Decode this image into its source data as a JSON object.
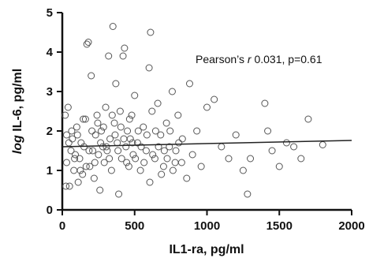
{
  "chart_data": {
    "type": "scatter",
    "xlabel": "IL1-ra, pg/ml",
    "ylabel_prefix": "log",
    "ylabel_suffix": " IL-6, pg/ml",
    "xlim": [
      0,
      2000
    ],
    "ylim": [
      0,
      5
    ],
    "xticks": [
      "0",
      "500",
      "1000",
      "1500",
      "2000"
    ],
    "yticks": [
      "0",
      "1",
      "2",
      "3",
      "4",
      "5"
    ],
    "annotation": {
      "prefix": "Pearson’s ",
      "r_symbol": "r",
      "suffix": " 0.031, p=0.61"
    },
    "grid": false,
    "marker_color": "#555555",
    "line_color": "#222222",
    "regression": {
      "intercept": 1.6,
      "slope": 8e-05
    },
    "points": [
      [
        20,
        2.4
      ],
      [
        30,
        1.9
      ],
      [
        40,
        2.6
      ],
      [
        30,
        1.2
      ],
      [
        50,
        0.6
      ],
      [
        60,
        1.5
      ],
      [
        70,
        1.8
      ],
      [
        80,
        1.0
      ],
      [
        90,
        1.4
      ],
      [
        100,
        2.1
      ],
      [
        110,
        0.7
      ],
      [
        120,
        1.3
      ],
      [
        130,
        1.7
      ],
      [
        140,
        0.9
      ],
      [
        150,
        1.6
      ],
      [
        160,
        2.3
      ],
      [
        170,
        4.2
      ],
      [
        180,
        4.25
      ],
      [
        190,
        1.1
      ],
      [
        200,
        3.4
      ],
      [
        210,
        1.5
      ],
      [
        220,
        0.8
      ],
      [
        230,
        1.9
      ],
      [
        240,
        2.4
      ],
      [
        250,
        1.4
      ],
      [
        260,
        0.5
      ],
      [
        270,
        2.0
      ],
      [
        280,
        1.6
      ],
      [
        290,
        1.2
      ],
      [
        300,
        2.6
      ],
      [
        310,
        1.5
      ],
      [
        320,
        3.9
      ],
      [
        330,
        1.8
      ],
      [
        340,
        1.0
      ],
      [
        350,
        4.65
      ],
      [
        360,
        2.2
      ],
      [
        370,
        3.2
      ],
      [
        380,
        1.7
      ],
      [
        390,
        0.4
      ],
      [
        400,
        2.5
      ],
      [
        410,
        1.3
      ],
      [
        420,
        3.9
      ],
      [
        430,
        4.1
      ],
      [
        440,
        1.6
      ],
      [
        450,
        2.0
      ],
      [
        460,
        1.1
      ],
      [
        470,
        1.8
      ],
      [
        480,
        2.4
      ],
      [
        490,
        1.4
      ],
      [
        500,
        2.9
      ],
      [
        520,
        1.7
      ],
      [
        540,
        1.0
      ],
      [
        560,
        2.1
      ],
      [
        580,
        1.5
      ],
      [
        600,
        3.6
      ],
      [
        610,
        4.5
      ],
      [
        620,
        2.5
      ],
      [
        640,
        1.3
      ],
      [
        660,
        2.7
      ],
      [
        680,
        1.9
      ],
      [
        700,
        1.1
      ],
      [
        720,
        2.2
      ],
      [
        740,
        1.6
      ],
      [
        760,
        3.0
      ],
      [
        780,
        1.2
      ],
      [
        800,
        2.4
      ],
      [
        830,
        1.8
      ],
      [
        860,
        0.8
      ],
      [
        880,
        3.2
      ],
      [
        900,
        1.4
      ],
      [
        930,
        2.0
      ],
      [
        960,
        1.1
      ],
      [
        1000,
        2.6
      ],
      [
        1050,
        2.8
      ],
      [
        1100,
        1.6
      ],
      [
        1150,
        1.3
      ],
      [
        1200,
        1.9
      ],
      [
        1250,
        1.0
      ],
      [
        1280,
        0.4
      ],
      [
        1300,
        1.3
      ],
      [
        1400,
        2.7
      ],
      [
        1420,
        2.0
      ],
      [
        1450,
        1.5
      ],
      [
        1500,
        1.1
      ],
      [
        1550,
        1.7
      ],
      [
        1600,
        1.6
      ],
      [
        1650,
        1.3
      ],
      [
        1700,
        2.3
      ],
      [
        1800,
        1.65
      ],
      [
        25,
        0.6
      ],
      [
        45,
        1.7
      ],
      [
        65,
        2.0
      ],
      [
        85,
        1.3
      ],
      [
        105,
        1.9
      ],
      [
        125,
        1.0
      ],
      [
        145,
        2.3
      ],
      [
        165,
        1.1
      ],
      [
        185,
        1.5
      ],
      [
        205,
        2.0
      ],
      [
        225,
        1.2
      ],
      [
        245,
        2.2
      ],
      [
        265,
        1.7
      ],
      [
        285,
        2.1
      ],
      [
        305,
        1.6
      ],
      [
        325,
        1.3
      ],
      [
        345,
        2.4
      ],
      [
        365,
        1.9
      ],
      [
        385,
        1.5
      ],
      [
        405,
        2.1
      ],
      [
        425,
        1.8
      ],
      [
        445,
        1.2
      ],
      [
        465,
        2.3
      ],
      [
        485,
        1.7
      ],
      [
        505,
        1.3
      ],
      [
        525,
        2.0
      ],
      [
        545,
        1.6
      ],
      [
        565,
        1.2
      ],
      [
        585,
        1.9
      ],
      [
        605,
        0.7
      ],
      [
        625,
        1.4
      ],
      [
        645,
        2.0
      ],
      [
        665,
        1.6
      ],
      [
        685,
        0.9
      ],
      [
        705,
        1.5
      ],
      [
        725,
        1.3
      ],
      [
        745,
        2.0
      ],
      [
        765,
        1.0
      ],
      [
        785,
        1.5
      ],
      [
        805,
        1.7
      ],
      [
        825,
        1.2
      ]
    ]
  }
}
